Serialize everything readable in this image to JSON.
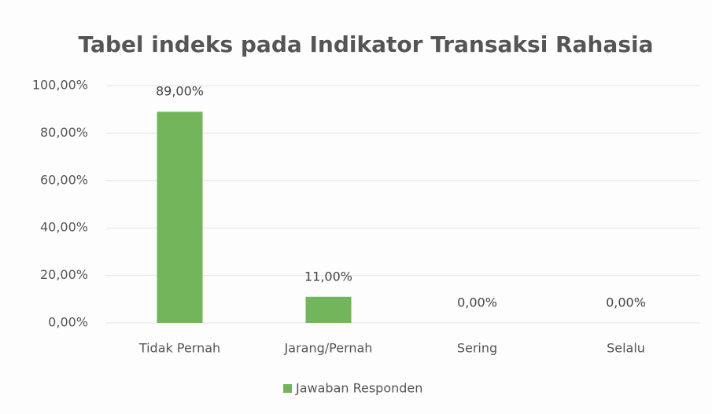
{
  "chart_data": {
    "type": "bar",
    "title": "Tabel indeks pada Indikator Transaksi Rahasia",
    "categories": [
      "Tidak Pernah",
      "Jarang/Pernah",
      "Sering",
      "Selalu"
    ],
    "series": [
      {
        "name": "Jawaban Responden",
        "color": "#72b55a",
        "values": [
          89,
          11,
          0,
          0
        ],
        "value_labels": [
          "89,00%",
          "11,00%",
          "0,00%",
          "0,00%"
        ]
      }
    ],
    "ylim": [
      0,
      100
    ],
    "yticks": [
      {
        "value": 0,
        "label": "0,00%"
      },
      {
        "value": 20,
        "label": "20,00%"
      },
      {
        "value": 40,
        "label": "40,00%"
      },
      {
        "value": 60,
        "label": "60,00%"
      },
      {
        "value": 80,
        "label": "80,00%"
      },
      {
        "value": 100,
        "label": "100,00%"
      }
    ],
    "grid": true,
    "legend": "bottom"
  }
}
